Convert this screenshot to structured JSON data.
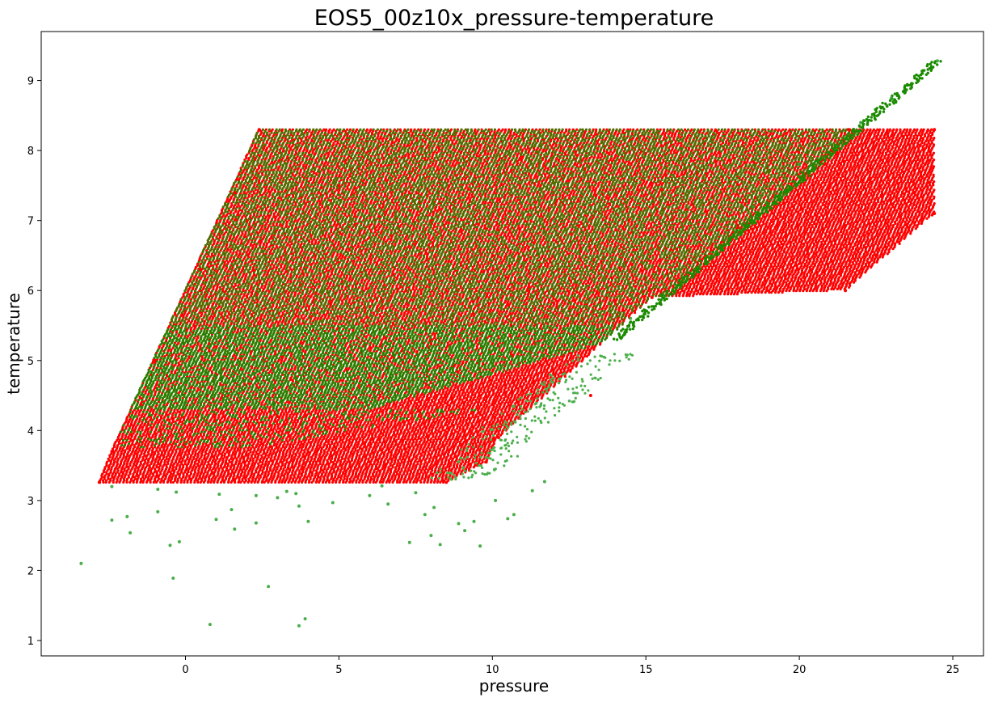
{
  "chart_data": {
    "type": "scatter",
    "title": "EOS5_00z10x_pressure-temperature",
    "xlabel": "pressure",
    "ylabel": "temperature",
    "xlim": [
      -4.7,
      26.0
    ],
    "ylim": [
      0.78,
      9.7
    ],
    "xticks": [
      0,
      5,
      10,
      15,
      20,
      25
    ],
    "yticks": [
      1,
      2,
      3,
      4,
      5,
      6,
      7,
      8,
      9
    ],
    "grid": false,
    "legend": null,
    "series": [
      {
        "color": "#ff0000",
        "description": "dense grid of tabulated points (upper-left band plus extension to the right)",
        "points": [
          [
            -2.8,
            3.26
          ],
          [
            8.5,
            3.26
          ],
          [
            -2.4,
            3.7
          ],
          [
            9.8,
            3.55
          ],
          [
            10.2,
            3.9
          ],
          [
            2.4,
            8.3
          ],
          [
            21.6,
            8.3
          ],
          [
            24.4,
            8.3
          ],
          [
            24.4,
            7.1
          ],
          [
            21.5,
            6.0
          ],
          [
            15.2,
            5.9
          ],
          [
            13.2,
            4.5
          ],
          [
            -1.0,
            5.0
          ],
          [
            0.5,
            6.3
          ],
          [
            1.6,
            7.4
          ],
          [
            5.0,
            7.5
          ],
          [
            10.0,
            6.5
          ],
          [
            18.0,
            6.9
          ],
          [
            22.5,
            6.5
          ],
          [
            3.0,
            4.2
          ]
        ]
      },
      {
        "color": "#2aa02a",
        "description": "scattered points overlapping the grid, a diagonal spine up to the top right, and sparse outliers",
        "points": [
          [
            -3.4,
            2.1
          ],
          [
            -2.4,
            3.2
          ],
          [
            -2.4,
            2.72
          ],
          [
            -1.9,
            2.77
          ],
          [
            -1.8,
            2.54
          ],
          [
            -0.9,
            3.16
          ],
          [
            -0.9,
            2.84
          ],
          [
            -0.5,
            2.36
          ],
          [
            -0.4,
            1.89
          ],
          [
            -0.3,
            3.12
          ],
          [
            -0.2,
            2.41
          ],
          [
            0.8,
            1.23
          ],
          [
            1.0,
            2.73
          ],
          [
            1.1,
            3.09
          ],
          [
            1.5,
            2.87
          ],
          [
            1.6,
            2.59
          ],
          [
            2.3,
            3.07
          ],
          [
            2.3,
            2.68
          ],
          [
            2.7,
            1.77
          ],
          [
            3.0,
            3.04
          ],
          [
            3.3,
            3.13
          ],
          [
            3.6,
            3.1
          ],
          [
            3.7,
            2.92
          ],
          [
            3.7,
            1.21
          ],
          [
            3.9,
            1.31
          ],
          [
            4.0,
            2.7
          ],
          [
            4.8,
            2.97
          ],
          [
            6.0,
            3.07
          ],
          [
            6.4,
            3.21
          ],
          [
            6.6,
            2.95
          ],
          [
            7.3,
            2.4
          ],
          [
            7.5,
            3.11
          ],
          [
            7.8,
            2.8
          ],
          [
            8.0,
            2.5
          ],
          [
            8.1,
            2.9
          ],
          [
            8.3,
            2.37
          ],
          [
            8.9,
            2.67
          ],
          [
            9.1,
            2.57
          ],
          [
            9.4,
            2.7
          ],
          [
            9.6,
            2.35
          ],
          [
            10.1,
            3.0
          ],
          [
            10.5,
            2.74
          ],
          [
            10.7,
            2.8
          ],
          [
            11.3,
            3.14
          ],
          [
            11.7,
            3.27
          ],
          [
            -1.6,
            4.2
          ],
          [
            0.0,
            4.8
          ],
          [
            1.0,
            5.6
          ],
          [
            2.0,
            7.2
          ],
          [
            6.0,
            6.0
          ],
          [
            12.0,
            7.0
          ],
          [
            14.5,
            5.6
          ],
          [
            16.0,
            6.3
          ],
          [
            18.5,
            7.2
          ],
          [
            20.0,
            7.8
          ],
          [
            21.0,
            8.1
          ],
          [
            22.0,
            8.4
          ],
          [
            23.0,
            8.75
          ],
          [
            24.5,
            9.28
          ]
        ]
      }
    ]
  }
}
